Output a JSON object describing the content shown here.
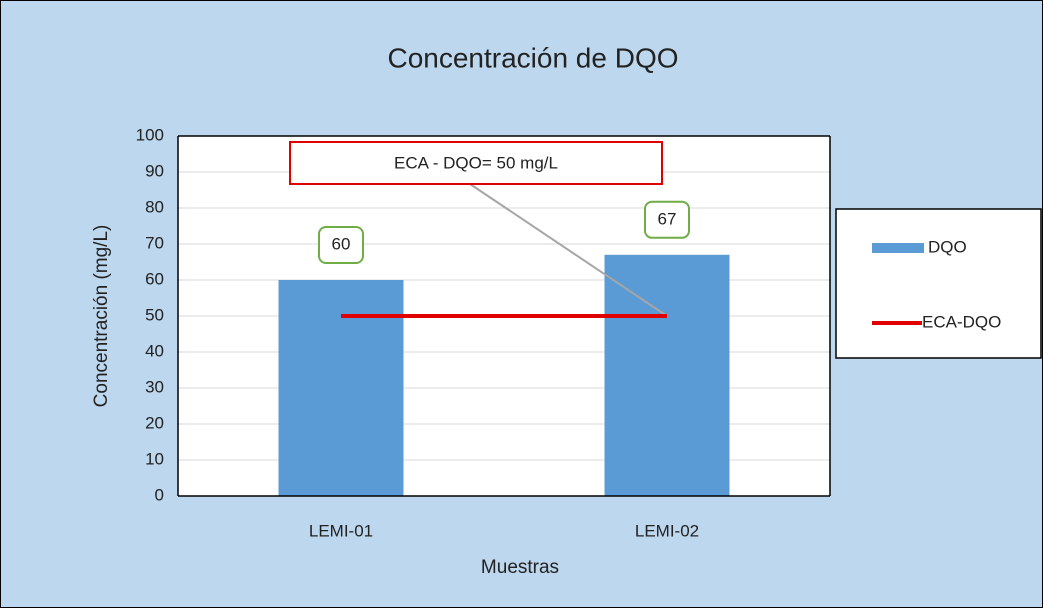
{
  "chart_data": {
    "type": "bar",
    "title": "Concentración de DQO",
    "x_label": "Muestras",
    "y_label": "Concentración (mg/L)",
    "annotation": "ECA - DQO= 50 mg/L",
    "categories": [
      "LEMI-01",
      "LEMI-02"
    ],
    "series": [
      {
        "name": "DQO",
        "type": "bar",
        "color": "#5b9bd5",
        "values": [
          60,
          67
        ]
      },
      {
        "name": "ECA-DQO",
        "type": "line",
        "color": "#e00000",
        "values": [
          50,
          50
        ]
      }
    ],
    "ylim": [
      0,
      100
    ],
    "yticks": [
      0,
      10,
      20,
      30,
      40,
      50,
      60,
      70,
      80,
      90,
      100
    ],
    "grid": true,
    "legend": "right"
  }
}
